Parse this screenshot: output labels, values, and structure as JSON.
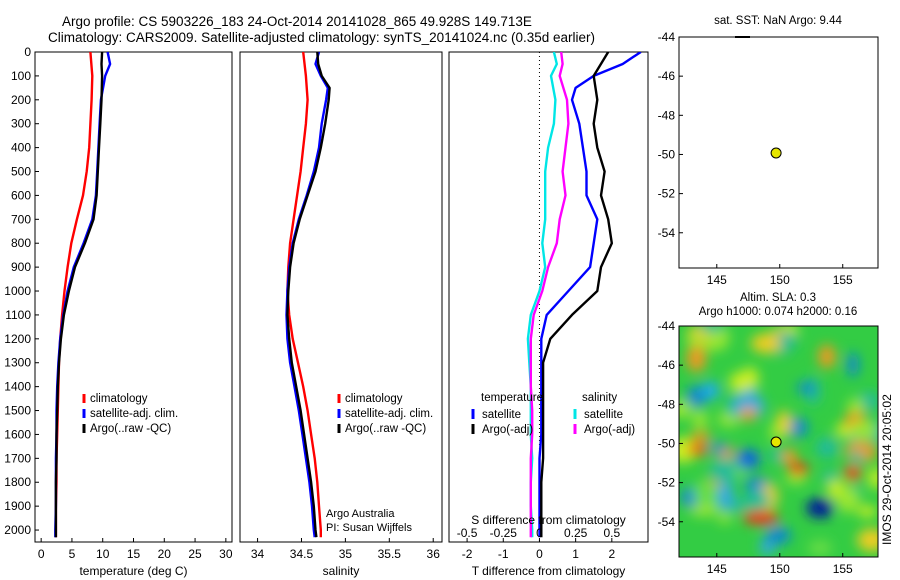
{
  "header": {
    "title_line1": "Argo profile: CS 5903226_183 24-Oct-2014 20141028_865 49.928S 149.713E",
    "title_line2": "Climatology: CARS2009. Satellite-adjusted climatology: synTS_20141024.nc (0.35d earlier)"
  },
  "credit": {
    "line1": "Argo Australia",
    "line2": "PI: Susan Wijffels"
  },
  "imos_stamp": "IMOS 29-Oct-2014 20:05:02",
  "chart_data": [
    {
      "id": "temperature",
      "type": "line",
      "xlabel": "temperature (deg C)",
      "ylim": [
        2050,
        0
      ],
      "xlim": [
        -1,
        31
      ],
      "xticks": [
        0,
        5,
        10,
        15,
        20,
        25,
        30
      ],
      "yticks": [
        0,
        100,
        200,
        300,
        400,
        500,
        600,
        700,
        800,
        900,
        1000,
        1100,
        1200,
        1300,
        1400,
        1500,
        1600,
        1700,
        1800,
        1900,
        2000
      ],
      "legend": [
        "climatology",
        "satellite-adj. clim.",
        "Argo(..raw -QC)"
      ],
      "series": [
        {
          "name": "climatology",
          "color": "#ff0000",
          "y": [
            0,
            100,
            200,
            300,
            400,
            500,
            600,
            700,
            800,
            900,
            1000,
            1100,
            1200,
            1300,
            1400,
            1500,
            1600,
            1700,
            1800,
            1900,
            2000,
            2030
          ],
          "values": [
            8.0,
            8.3,
            8.2,
            8.0,
            7.8,
            7.4,
            6.8,
            5.8,
            4.9,
            4.3,
            3.8,
            3.4,
            3.1,
            2.9,
            2.8,
            2.7,
            2.6,
            2.5,
            2.5,
            2.4,
            2.4,
            2.4
          ]
        },
        {
          "name": "satellite-adj. clim.",
          "color": "#0000ff",
          "y": [
            0,
            50,
            100,
            200,
            300,
            400,
            500,
            600,
            700,
            800,
            900,
            1000,
            1100,
            1200,
            1300,
            1400,
            1500,
            1600,
            1700,
            1800,
            1900,
            2000,
            2030
          ],
          "values": [
            10.8,
            11.2,
            10.4,
            9.7,
            9.5,
            9.3,
            9.1,
            8.9,
            8.3,
            6.9,
            5.3,
            4.3,
            3.6,
            3.1,
            2.8,
            2.6,
            2.5,
            2.5,
            2.4,
            2.4,
            2.4,
            2.3,
            2.3
          ]
        },
        {
          "name": "Argo(..raw -QC)",
          "color": "#000000",
          "y": [
            0,
            50,
            100,
            200,
            300,
            400,
            500,
            600,
            700,
            800,
            900,
            1000,
            1100,
            1200,
            1300,
            1400,
            1500,
            1600,
            1700,
            1800,
            1900,
            2000,
            2030
          ],
          "values": [
            9.9,
            9.8,
            9.9,
            9.8,
            9.6,
            9.4,
            9.2,
            9.0,
            8.5,
            7.1,
            5.5,
            4.5,
            3.7,
            3.2,
            2.9,
            2.7,
            2.6,
            2.5,
            2.5,
            2.4,
            2.4,
            2.4,
            2.4
          ]
        }
      ]
    },
    {
      "id": "salinity",
      "type": "line",
      "xlabel": "salinity",
      "ylim": [
        2050,
        0
      ],
      "xlim": [
        33.8,
        36.1
      ],
      "xticks": [
        34,
        34.5,
        35,
        35.5,
        36
      ],
      "legend": [
        "climatology",
        "satellite-adj. clim.",
        "Argo(..raw -QC)"
      ],
      "series": [
        {
          "name": "climatology",
          "color": "#ff0000",
          "y": [
            0,
            100,
            200,
            300,
            400,
            500,
            600,
            700,
            800,
            900,
            1000,
            1100,
            1200,
            1300,
            1400,
            1500,
            1600,
            1700,
            1800,
            1900,
            2000,
            2030
          ],
          "values": [
            34.52,
            34.55,
            34.57,
            34.55,
            34.52,
            34.49,
            34.45,
            34.41,
            34.37,
            34.35,
            34.34,
            34.36,
            34.4,
            34.46,
            34.52,
            34.57,
            34.61,
            34.65,
            34.68,
            34.7,
            34.72,
            34.72
          ]
        },
        {
          "name": "satellite-adj. clim.",
          "color": "#0000ff",
          "y": [
            0,
            50,
            100,
            150,
            200,
            300,
            400,
            500,
            600,
            700,
            800,
            900,
            1000,
            1100,
            1200,
            1300,
            1400,
            1500,
            1600,
            1700,
            1800,
            1900,
            2000,
            2030
          ],
          "values": [
            34.7,
            34.66,
            34.72,
            34.8,
            34.78,
            34.73,
            34.7,
            34.64,
            34.56,
            34.47,
            34.4,
            34.36,
            34.34,
            34.33,
            34.34,
            34.37,
            34.42,
            34.47,
            34.51,
            34.55,
            34.59,
            34.62,
            34.64,
            34.65
          ]
        },
        {
          "name": "Argo(..raw -QC)",
          "color": "#000000",
          "y": [
            0,
            50,
            100,
            150,
            200,
            300,
            400,
            500,
            600,
            700,
            800,
            900,
            1000,
            1100,
            1200,
            1300,
            1400,
            1500,
            1600,
            1700,
            1800,
            1900,
            2000,
            2030
          ],
          "values": [
            34.68,
            34.69,
            34.73,
            34.82,
            34.81,
            34.77,
            34.72,
            34.66,
            34.57,
            34.48,
            34.41,
            34.37,
            34.35,
            34.34,
            34.36,
            34.39,
            34.44,
            34.49,
            34.53,
            34.57,
            34.61,
            34.64,
            34.66,
            34.67
          ]
        }
      ]
    },
    {
      "id": "difference",
      "type": "line",
      "xlabel": "T difference from climatology",
      "xlabel_top": "S difference from climatology",
      "ylim": [
        2050,
        0
      ],
      "xlim": [
        -2.5,
        3.0
      ],
      "xticks": [
        -2,
        -1,
        0,
        1,
        2
      ],
      "xticks_top": [
        "-0.5",
        "-0.25",
        "0",
        "0.25",
        "0.5"
      ],
      "legend_headers": [
        "temperature",
        "salinity"
      ],
      "legend": [
        "satellite",
        "Argo(-adj)",
        "satellite",
        "Argo(-adj)"
      ],
      "series": [
        {
          "name": "satellite",
          "group": "temperature",
          "color": "#0000ff",
          "y": [
            0,
            20,
            50,
            100,
            150,
            200,
            300,
            400,
            500,
            600,
            700,
            800,
            900,
            1000,
            1100,
            1200,
            1300,
            1400,
            1500,
            1600,
            1700,
            1800,
            1900,
            2000,
            2030
          ],
          "values": [
            2.8,
            2.6,
            2.3,
            1.5,
            1.0,
            0.9,
            1.1,
            1.2,
            1.3,
            1.3,
            1.6,
            1.5,
            1.4,
            0.8,
            0.2,
            0.05,
            0.05,
            0.05,
            0.05,
            0.05,
            0.0,
            0.0,
            0.0,
            0.0,
            0.0
          ]
        },
        {
          "name": "Argo(-adj)",
          "group": "temperature",
          "color": "#000000",
          "y": [
            0,
            100,
            200,
            300,
            400,
            500,
            600,
            700,
            800,
            900,
            1000,
            1100,
            1200,
            1300,
            1400,
            1500,
            1600,
            1700,
            1800,
            1900,
            2000,
            2030
          ],
          "values": [
            1.9,
            1.5,
            1.6,
            1.5,
            1.6,
            1.8,
            1.7,
            1.9,
            2.0,
            1.7,
            1.6,
            0.9,
            0.3,
            0.1,
            0.1,
            0.1,
            0.1,
            0.1,
            0.05,
            0.05,
            0.05,
            0.05
          ]
        },
        {
          "name": "satellite",
          "group": "salinity",
          "color": "#00e6e6",
          "y": [
            0,
            50,
            100,
            200,
            300,
            400,
            500,
            600,
            700,
            800,
            900,
            1000,
            1100,
            1200,
            1300,
            1400,
            1500,
            1600,
            1700,
            1800,
            1900,
            2000,
            2030
          ],
          "values": [
            0.1,
            0.12,
            0.08,
            0.11,
            0.1,
            0.06,
            0.04,
            0.04,
            0.04,
            0.02,
            0.04,
            0.0,
            -0.06,
            -0.08,
            -0.07,
            -0.06,
            -0.06,
            -0.06,
            -0.05,
            -0.06,
            -0.06,
            -0.05,
            -0.05
          ]
        },
        {
          "name": "Argo(-adj)",
          "group": "salinity",
          "color": "#ff00ff",
          "y": [
            0,
            50,
            100,
            200,
            300,
            400,
            500,
            600,
            700,
            800,
            900,
            1000,
            1100,
            1200,
            1300,
            1400,
            1500,
            1600,
            1700,
            1800,
            1900,
            2000,
            2030
          ],
          "values": [
            0.15,
            0.16,
            0.14,
            0.19,
            0.2,
            0.18,
            0.16,
            0.18,
            0.14,
            0.12,
            0.06,
            0.02,
            -0.04,
            -0.06,
            -0.06,
            -0.06,
            -0.05,
            -0.05,
            -0.06,
            -0.06,
            -0.06,
            -0.06,
            -0.06
          ]
        }
      ]
    },
    {
      "id": "sst_map",
      "type": "scatter",
      "title": "sat. SST: NaN Argo: 9.44",
      "xlim": [
        142,
        157.8
      ],
      "ylim": [
        -55.8,
        -44
      ],
      "xticks": [
        145,
        150,
        155
      ],
      "yticks": [
        -44,
        -46,
        -48,
        -50,
        -52,
        -54
      ],
      "points": [
        {
          "x": 149.713,
          "y": -49.928,
          "color": "#e6e600"
        }
      ]
    },
    {
      "id": "sla_map",
      "type": "heatmap",
      "title_line1": "Altim. SLA: 0.3",
      "title_line2": "Argo h1000: 0.074 h2000: 0.16",
      "xlim": [
        142,
        157.8
      ],
      "ylim": [
        -55.8,
        -44
      ],
      "xticks": [
        145,
        150,
        155
      ],
      "yticks": [
        -44,
        -46,
        -48,
        -50,
        -52,
        -54
      ],
      "points": [
        {
          "x": 149.713,
          "y": -49.928,
          "color": "#e6e600"
        }
      ]
    }
  ]
}
